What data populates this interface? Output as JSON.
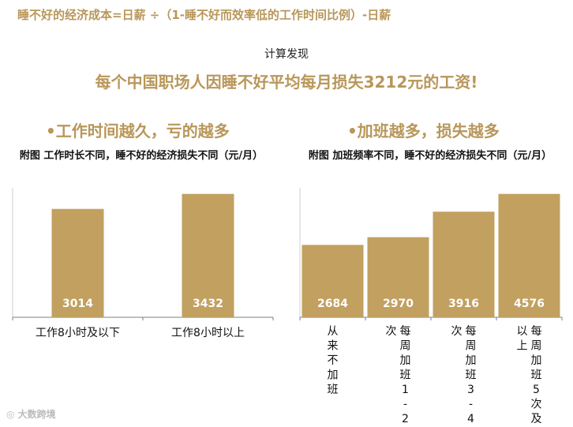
{
  "formula": "睡不好的经济成本=日薪 ÷（1-睡不好而效率低的工作时间比例）-日薪",
  "findings_label": "计算发现",
  "headline": "每个中国职场人因睡不好平均每月损失3212元的工资!",
  "sections": [
    {
      "title": "•工作时间越久，亏的越多",
      "caption": "附图  工作时长不同，睡不好的经济损失不同（元/月）"
    },
    {
      "title": "•加班越多，损失越多",
      "caption": "附图  加班频率不同，睡不好的经济损失不同（元/月）"
    }
  ],
  "watermark": "大数跨境",
  "colors": {
    "accent": "#b8975a",
    "bar": "#c2a060",
    "bar_label": "#ffffff"
  },
  "chart_data": [
    {
      "type": "bar",
      "title": "附图  工作时长不同，睡不好的经济损失不同（元/月）",
      "categories": [
        "工作8小时及以下",
        "工作8小时以上"
      ],
      "values": [
        3014,
        3432
      ],
      "ylim": [
        0,
        3600
      ],
      "grid": false,
      "legend": "none"
    },
    {
      "type": "bar",
      "title": "附图  加班频率不同，睡不好的经济损失不同（元/月）",
      "categories": [
        "从来不加班",
        "每周加班1-2次",
        "每周加班3-4次",
        "每周加班5次及以上"
      ],
      "values": [
        2684,
        2970,
        3916,
        4576
      ],
      "ylim": [
        0,
        4800
      ],
      "grid": false,
      "legend": "none"
    }
  ]
}
